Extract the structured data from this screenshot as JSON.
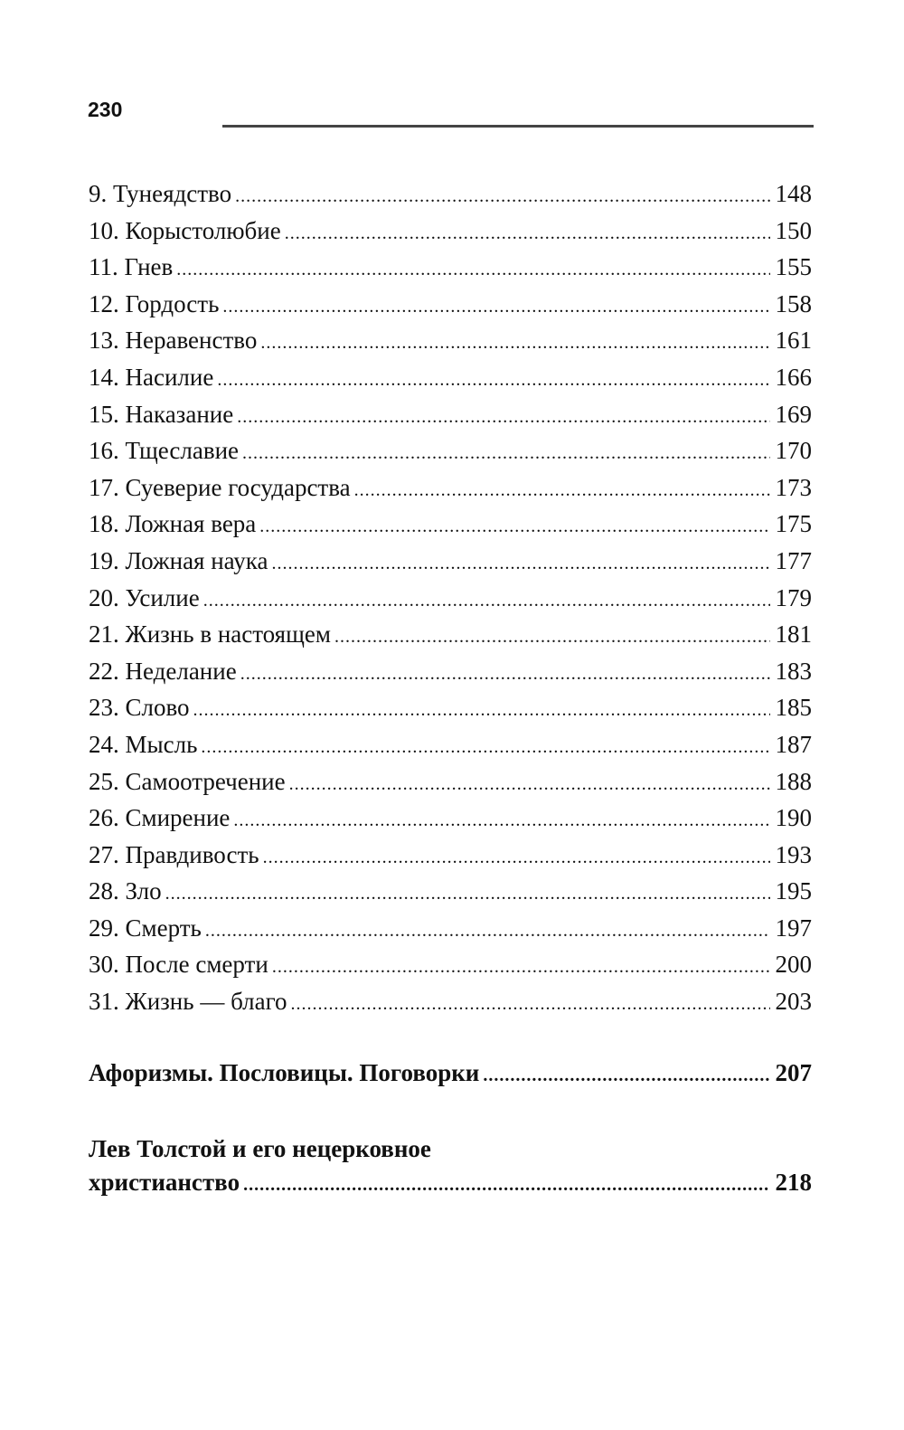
{
  "page_number": "230",
  "entries": [
    {
      "title": "9. Тунеядство",
      "page": "148"
    },
    {
      "title": "10. Корыстолюбие",
      "page": "150"
    },
    {
      "title": "11. Гнев",
      "page": "155"
    },
    {
      "title": "12. Гордость",
      "page": "158"
    },
    {
      "title": "13. Неравенство",
      "page": "161"
    },
    {
      "title": "14. Насилие",
      "page": "166"
    },
    {
      "title": "15. Наказание",
      "page": "169"
    },
    {
      "title": "16. Тщеславие",
      "page": "170"
    },
    {
      "title": "17. Суеверие государства",
      "page": "173"
    },
    {
      "title": "18. Ложная вера",
      "page": "175"
    },
    {
      "title": "19. Ложная наука",
      "page": "177"
    },
    {
      "title": "20. Усилие",
      "page": "179"
    },
    {
      "title": "21. Жизнь в настоящем",
      "page": "181"
    },
    {
      "title": "22. Неделание",
      "page": "183"
    },
    {
      "title": "23. Слово",
      "page": "185"
    },
    {
      "title": "24. Мысль",
      "page": "187"
    },
    {
      "title": "25. Самоотречение",
      "page": "188"
    },
    {
      "title": "26. Смирение",
      "page": "190"
    },
    {
      "title": "27. Правдивость",
      "page": "193"
    },
    {
      "title": "28. Зло",
      "page": "195"
    },
    {
      "title": "29. Смерть",
      "page": "197"
    },
    {
      "title": "30. После смерти",
      "page": "200"
    },
    {
      "title": "31. Жизнь — благо",
      "page": "203"
    }
  ],
  "sections": [
    {
      "title": "Афоризмы. Пословицы. Поговорки",
      "page": "207"
    },
    {
      "title_line1": "Лев Толстой и его нецерковное",
      "title_line2": "христианство",
      "page": "218"
    }
  ]
}
